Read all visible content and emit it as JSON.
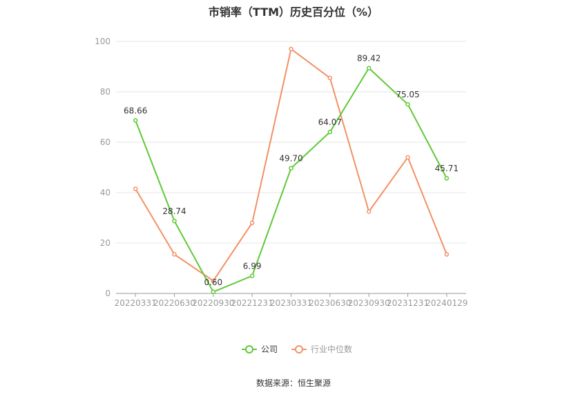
{
  "chart_data": {
    "type": "line",
    "title": "市销率（TTM）历史百分位（%）",
    "categories": [
      "20220331",
      "20220630",
      "20220930",
      "20221231",
      "20230331",
      "20230630",
      "20230930",
      "20231231",
      "20240129"
    ],
    "series": [
      {
        "name": "公司",
        "values": [
          68.66,
          28.74,
          0.6,
          6.99,
          49.7,
          64.07,
          89.42,
          75.05,
          45.71
        ],
        "color": "#5ec936",
        "labels": true
      },
      {
        "name": "行业中位数",
        "values": [
          41.5,
          15.5,
          5.0,
          28.0,
          97.0,
          85.5,
          32.5,
          54.0,
          15.5
        ],
        "color": "#f39064",
        "labels": false
      }
    ],
    "yticks": [
      0,
      20,
      40,
      60,
      80,
      100
    ],
    "ylim": [
      0,
      100
    ],
    "grid": true,
    "legend_position": "bottom-center"
  },
  "footer": {
    "source": "数据来源：恒生聚源"
  }
}
